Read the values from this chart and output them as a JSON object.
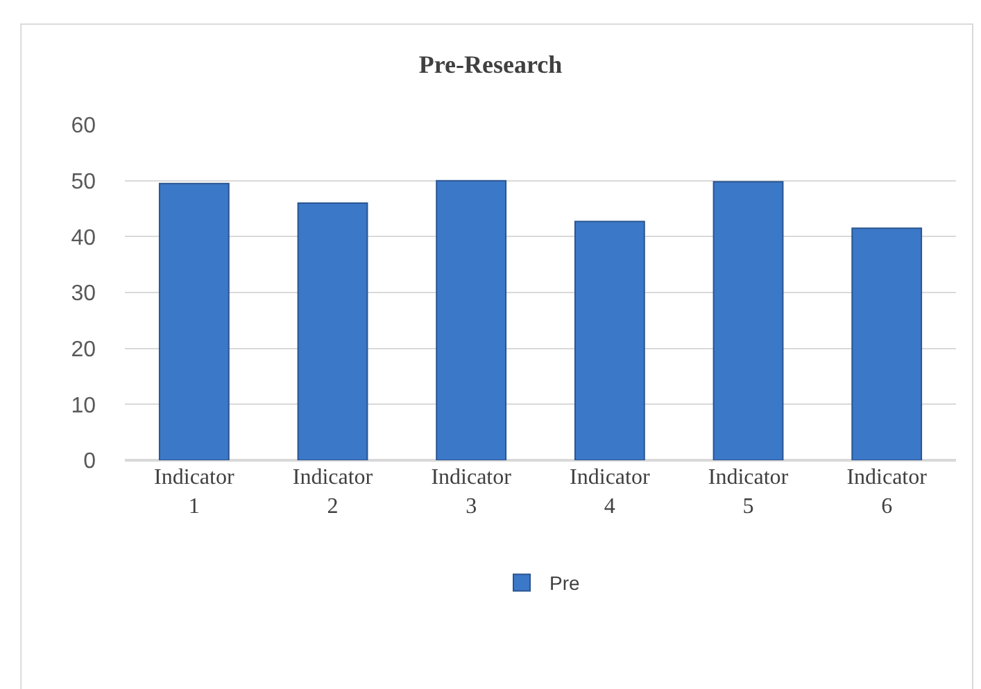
{
  "chart_data": {
    "type": "bar",
    "title": "Pre-Research",
    "categories": [
      "Indicator 1",
      "Indicator 2",
      "Indicator 3",
      "Indicator 4",
      "Indicator 5",
      "Indicator 6"
    ],
    "series": [
      {
        "name": "Pre",
        "color": "#3c78c8",
        "values": [
          49.5,
          46.0,
          50.0,
          42.7,
          49.8,
          41.5
        ]
      }
    ],
    "ylim": [
      0,
      60
    ],
    "yticks": [
      0,
      10,
      20,
      30,
      40,
      50,
      60
    ],
    "grid": "y",
    "legend": "bottom"
  }
}
